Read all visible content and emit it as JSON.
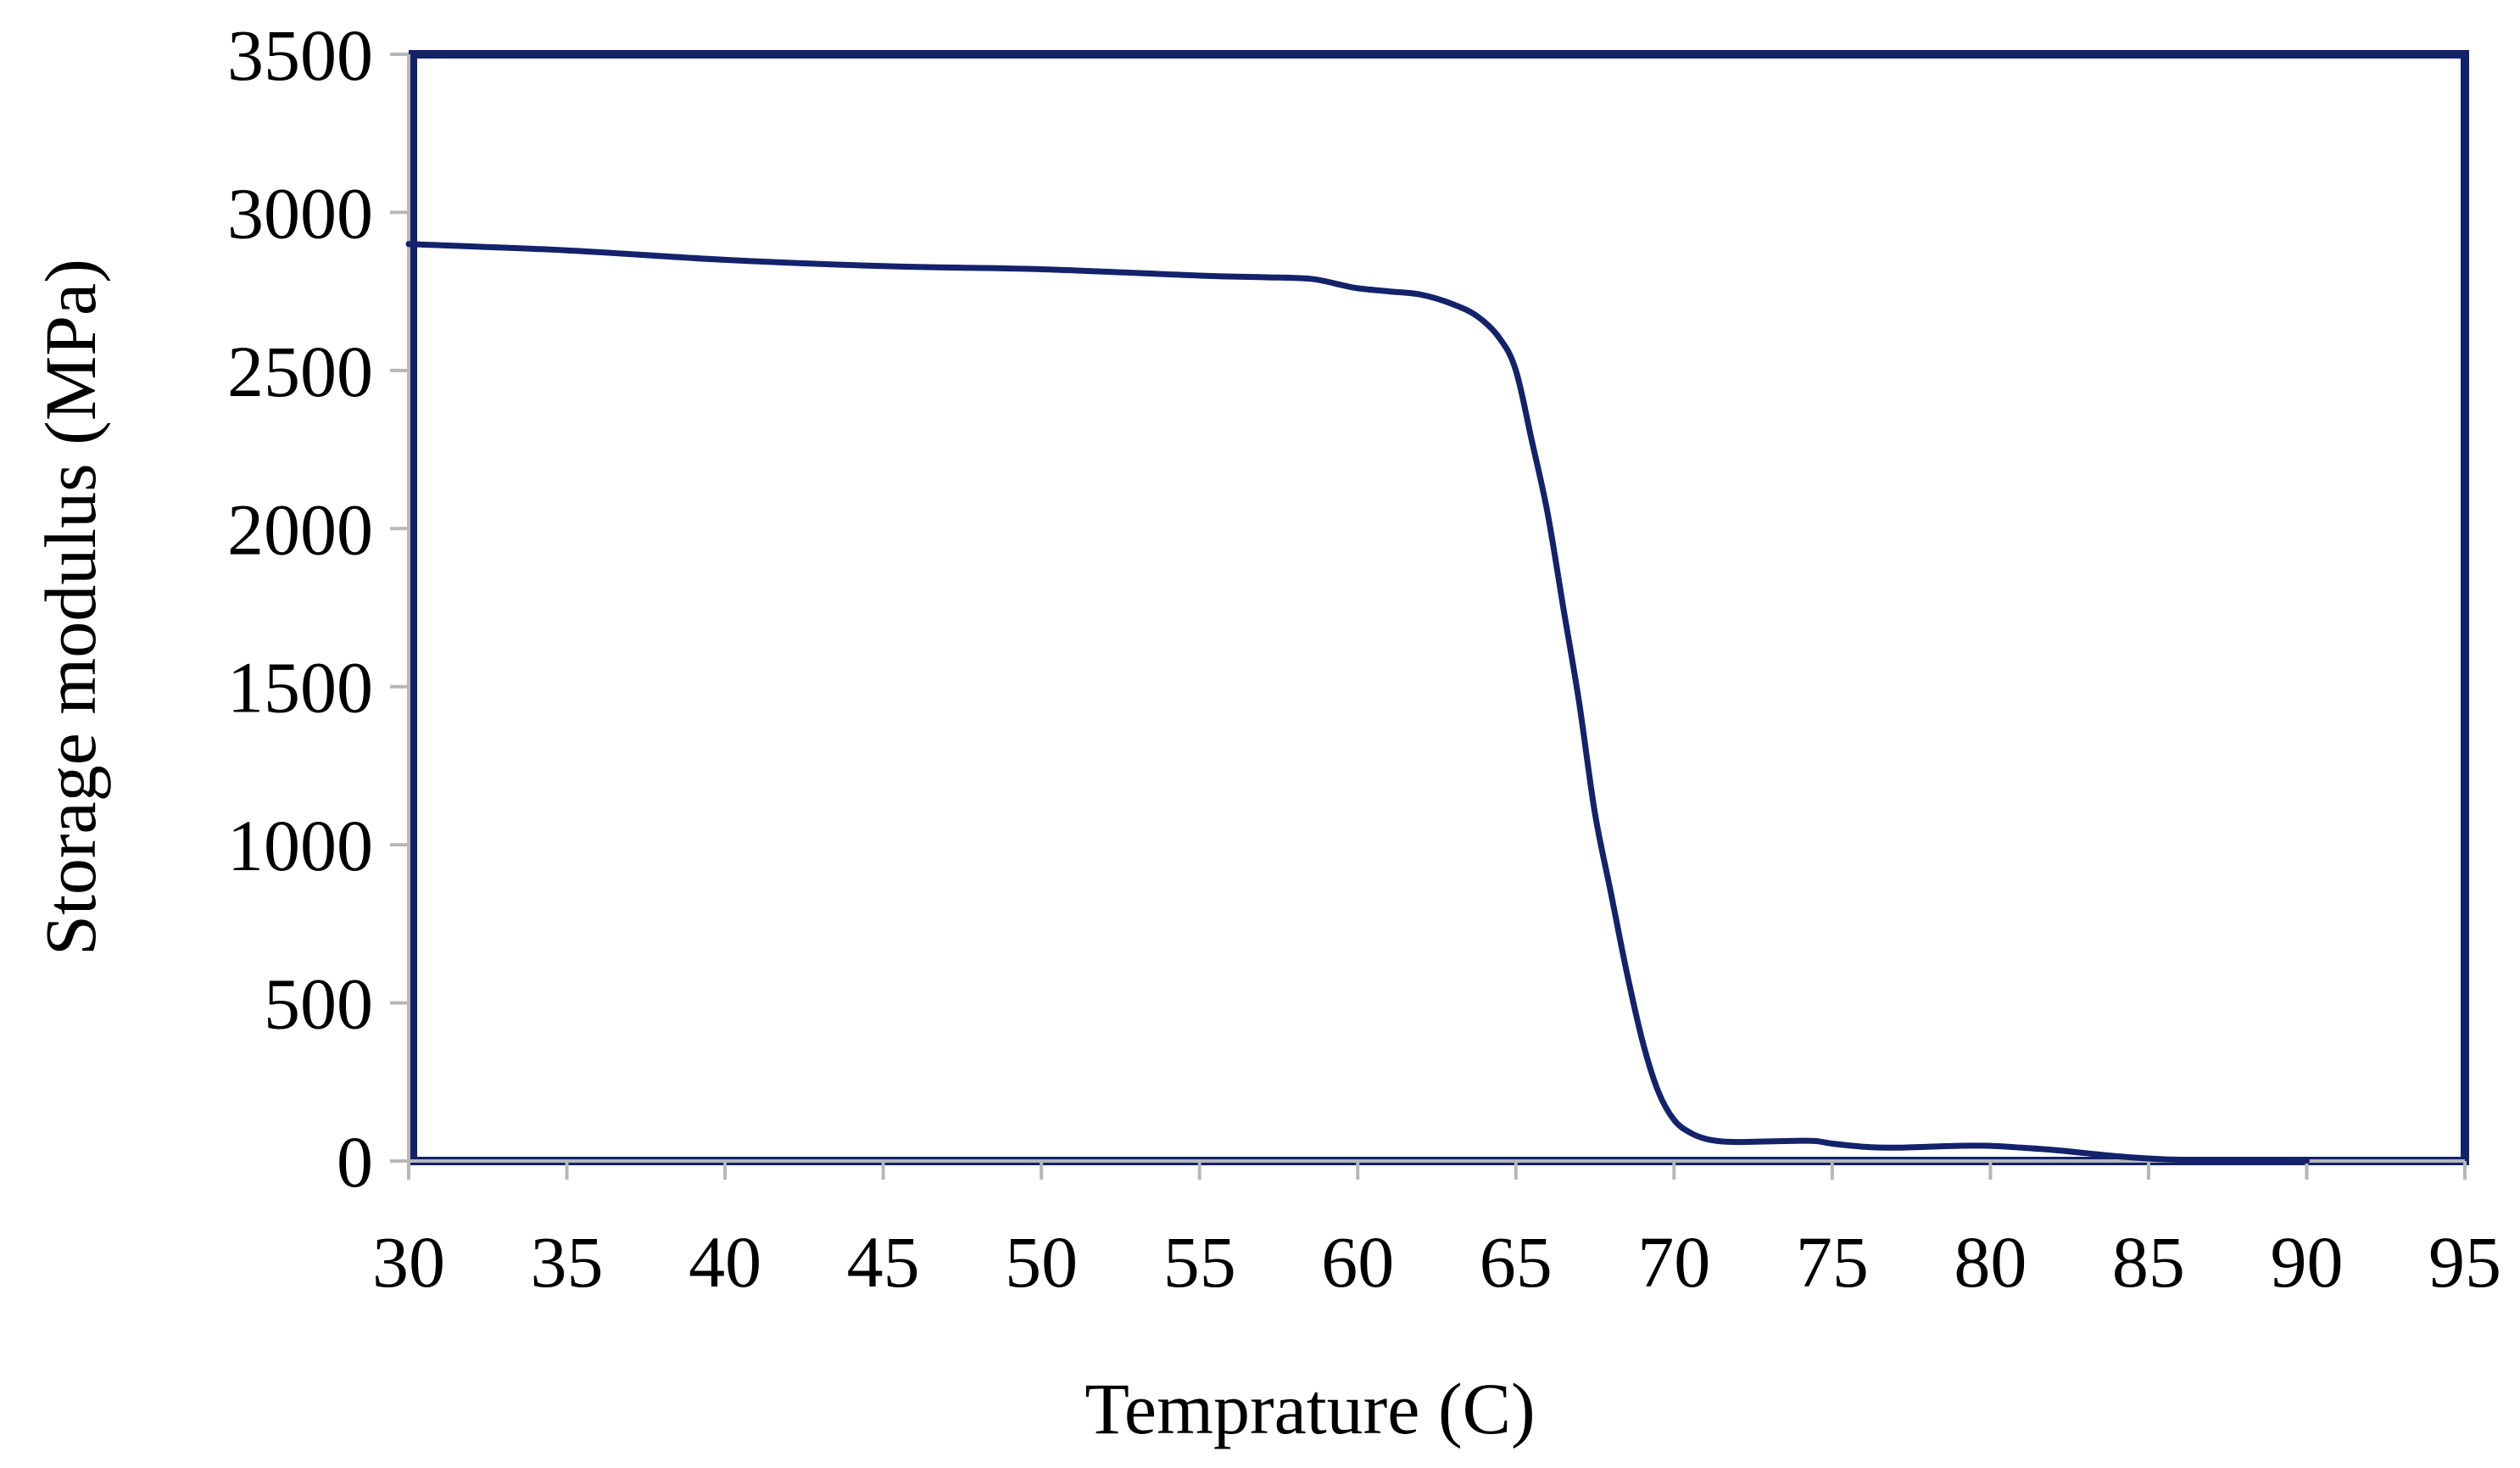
{
  "chart_data": {
    "type": "line",
    "title": "",
    "xlabel": "Temprature (C)",
    "ylabel": "Storage modulus (MPa)",
    "xlim": [
      30,
      95
    ],
    "ylim": [
      0,
      3500
    ],
    "x_ticks": [
      30,
      35,
      40,
      45,
      50,
      55,
      60,
      65,
      70,
      75,
      80,
      85,
      90,
      95
    ],
    "y_ticks": [
      0,
      500,
      1000,
      1500,
      2000,
      2500,
      3000,
      3500
    ],
    "grid": false,
    "legend": "none",
    "series_color": "#13226b",
    "series": [
      {
        "x": [
          30,
          35,
          40,
          45,
          50,
          55,
          57,
          58.5,
          59.5,
          60,
          61,
          62,
          63,
          63.8,
          64.5,
          65,
          65.5,
          66,
          66.5,
          67,
          67.5,
          68,
          68.5,
          69,
          69.5,
          70,
          70.5,
          71,
          71.5,
          72,
          73,
          74,
          74.5,
          75,
          76,
          77,
          78,
          79,
          80,
          81,
          82,
          83,
          84,
          85,
          86,
          88,
          90
        ],
        "y": [
          2900,
          2880,
          2850,
          2830,
          2820,
          2800,
          2795,
          2790,
          2770,
          2760,
          2750,
          2740,
          2710,
          2670,
          2600,
          2500,
          2280,
          2050,
          1750,
          1450,
          1100,
          850,
          600,
          380,
          220,
          130,
          90,
          70,
          62,
          60,
          62,
          64,
          63,
          55,
          45,
          42,
          45,
          48,
          48,
          42,
          35,
          25,
          15,
          8,
          4,
          2,
          1
        ]
      }
    ]
  }
}
